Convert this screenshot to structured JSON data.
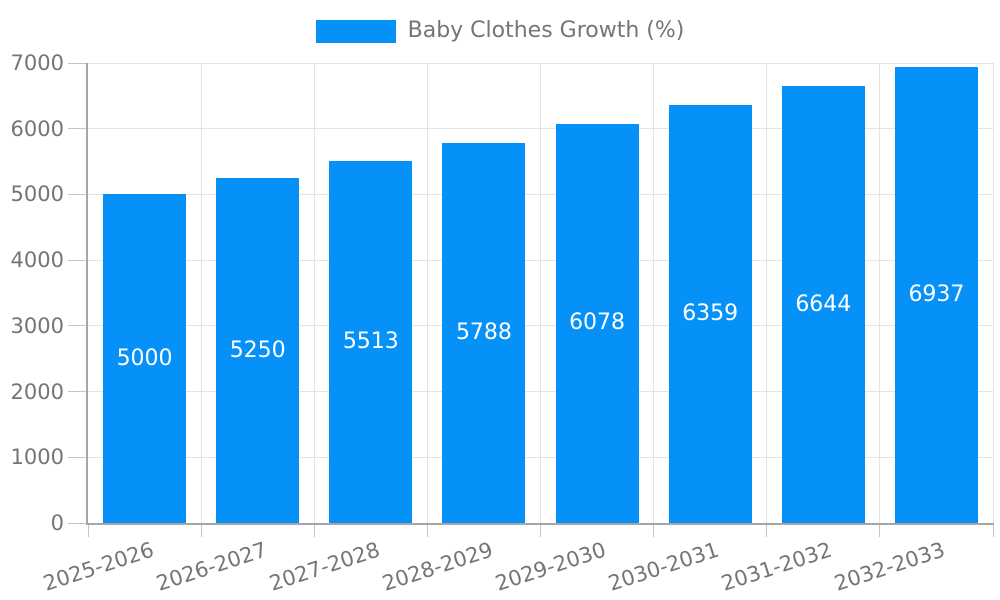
{
  "chart_data": {
    "type": "bar",
    "title": "",
    "legend": {
      "label": "Baby Clothes Growth (%)",
      "position": "top-center"
    },
    "categories": [
      "2025-2026",
      "2026-2027",
      "2027-2028",
      "2028-2029",
      "2029-2030",
      "2030-2031",
      "2031-2032",
      "2032-2033"
    ],
    "series": [
      {
        "name": "Baby Clothes Growth (%)",
        "values": [
          5000,
          5250,
          5513,
          5788,
          6078,
          6359,
          6644,
          6937
        ]
      }
    ],
    "xlabel": "",
    "ylabel": "",
    "ylim": [
      0,
      7000
    ],
    "yticks": [
      0,
      1000,
      2000,
      3000,
      4000,
      5000,
      6000,
      7000
    ],
    "grid": true,
    "x_label_rotation_deg": -18,
    "bar_label_position": "inside-center",
    "colors": {
      "bar": "#0591f8",
      "grid": "#e3e3e3",
      "axis": "#a6a6a6",
      "tick": "#c4c4c4",
      "text": "#757575",
      "bar_label": "#ffffff",
      "background": "#ffffff"
    }
  }
}
